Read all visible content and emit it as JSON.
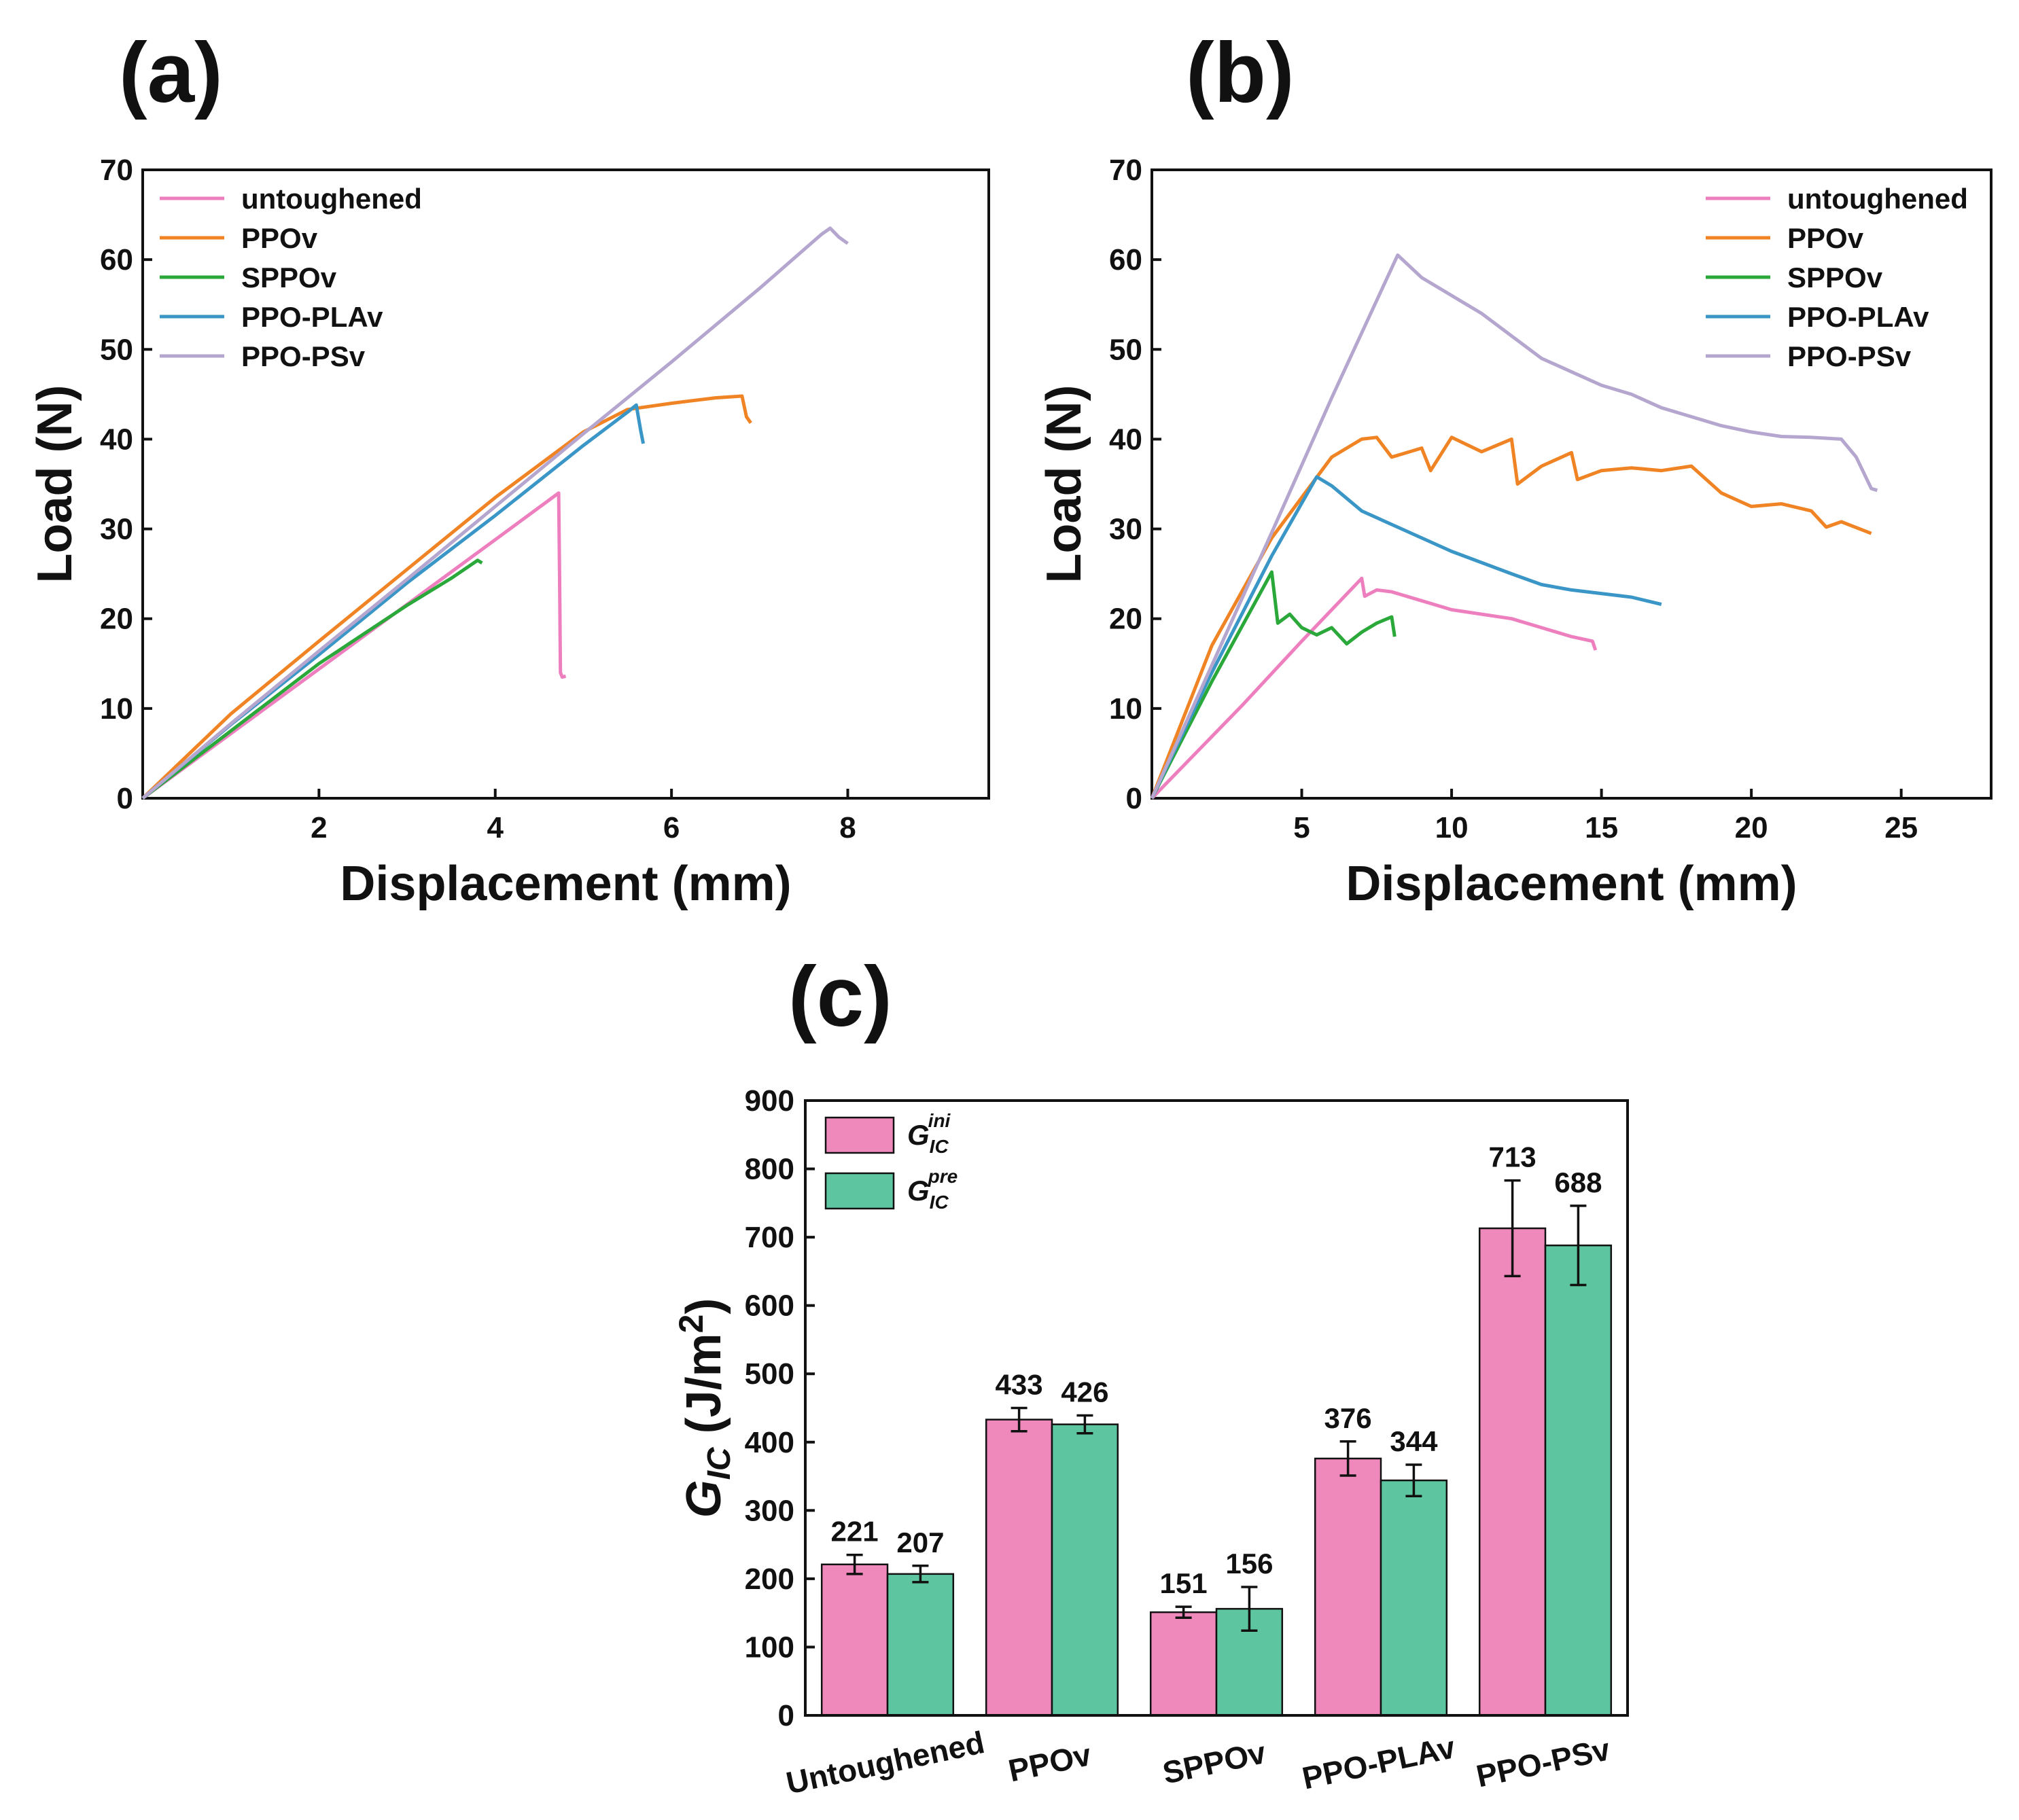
{
  "panels": [
    {
      "label": "(a)"
    },
    {
      "label": "(b)"
    },
    {
      "label": "(c)"
    }
  ],
  "chart_data": [
    {
      "type": "line",
      "panel": "(a)",
      "xlabel": "Displacement (mm)",
      "ylabel": "Load (N)",
      "xlim": [
        0,
        9.6
      ],
      "ylim": [
        0,
        70
      ],
      "xticks": [
        2,
        4,
        6,
        8
      ],
      "yticks": [
        0,
        10,
        20,
        30,
        40,
        50,
        60,
        70
      ],
      "legend_position": "top-left",
      "series": [
        {
          "name": "untoughened",
          "color": "#ee7fbf",
          "points": [
            [
              0,
              0
            ],
            [
              1,
              7.2
            ],
            [
              2,
              14.4
            ],
            [
              3,
              21.6
            ],
            [
              4,
              28.8
            ],
            [
              4.72,
              34
            ],
            [
              4.73,
              25
            ],
            [
              4.74,
              14
            ],
            [
              4.76,
              13.5
            ],
            [
              4.8,
              13.6
            ]
          ]
        },
        {
          "name": "PPOv",
          "color": "#f08424",
          "points": [
            [
              0,
              0
            ],
            [
              1,
              9.4
            ],
            [
              2,
              17.5
            ],
            [
              3,
              25.5
            ],
            [
              4,
              33.5
            ],
            [
              5,
              40.8
            ],
            [
              5.5,
              43.3
            ],
            [
              6,
              44
            ],
            [
              6.5,
              44.6
            ],
            [
              6.8,
              44.8
            ],
            [
              6.85,
              42.5
            ],
            [
              6.9,
              41.8
            ]
          ]
        },
        {
          "name": "SPPOv",
          "color": "#2aa83a",
          "points": [
            [
              0,
              0
            ],
            [
              1,
              7.5
            ],
            [
              2,
              15
            ],
            [
              3,
              21.5
            ],
            [
              3.5,
              24.5
            ],
            [
              3.8,
              26.5
            ],
            [
              3.85,
              26.2
            ]
          ]
        },
        {
          "name": "PPO-PLAv",
          "color": "#3a96c6",
          "points": [
            [
              0,
              0
            ],
            [
              1,
              8.2
            ],
            [
              2,
              16
            ],
            [
              3,
              24
            ],
            [
              4,
              31.5
            ],
            [
              5,
              39.3
            ],
            [
              5.5,
              43
            ],
            [
              5.6,
              43.8
            ],
            [
              5.65,
              41
            ],
            [
              5.68,
              39.5
            ]
          ]
        },
        {
          "name": "PPO-PSv",
          "color": "#b4a6ce",
          "points": [
            [
              0,
              0
            ],
            [
              1,
              8.3
            ],
            [
              2,
              16.4
            ],
            [
              3,
              24.4
            ],
            [
              4,
              32.5
            ],
            [
              5,
              40.6
            ],
            [
              6,
              48.6
            ],
            [
              7,
              56.8
            ],
            [
              7.7,
              62.8
            ],
            [
              7.8,
              63.5
            ],
            [
              7.9,
              62.5
            ],
            [
              8,
              61.8
            ]
          ]
        }
      ]
    },
    {
      "type": "line",
      "panel": "(b)",
      "xlabel": "Displacement (mm)",
      "ylabel": "Load (N)",
      "xlim": [
        0,
        28
      ],
      "ylim": [
        0,
        70
      ],
      "xticks": [
        5,
        10,
        15,
        20,
        25
      ],
      "yticks": [
        0,
        10,
        20,
        30,
        40,
        50,
        60,
        70
      ],
      "legend_position": "top-right",
      "series": [
        {
          "name": "untoughened",
          "color": "#ee7fbf",
          "points": [
            [
              0,
              0
            ],
            [
              3,
              10.3
            ],
            [
              5,
              17.5
            ],
            [
              7,
              24.5
            ],
            [
              7.1,
              22.5
            ],
            [
              7.5,
              23.2
            ],
            [
              8,
              23
            ],
            [
              9,
              22
            ],
            [
              10,
              21
            ],
            [
              12,
              20
            ],
            [
              13,
              19
            ],
            [
              14,
              18
            ],
            [
              14.7,
              17.5
            ],
            [
              14.8,
              16.5
            ]
          ]
        },
        {
          "name": "PPOv",
          "color": "#f08424",
          "points": [
            [
              0,
              0
            ],
            [
              2,
              17
            ],
            [
              4,
              29
            ],
            [
              6,
              38
            ],
            [
              7,
              40
            ],
            [
              7.5,
              40.2
            ],
            [
              8,
              38
            ],
            [
              9,
              39
            ],
            [
              9.3,
              36.5
            ],
            [
              10,
              40.2
            ],
            [
              11,
              38.6
            ],
            [
              12,
              40
            ],
            [
              12.2,
              35
            ],
            [
              13,
              37
            ],
            [
              14,
              38.5
            ],
            [
              14.2,
              35.5
            ],
            [
              15,
              36.5
            ],
            [
              16,
              36.8
            ],
            [
              17,
              36.5
            ],
            [
              18,
              37
            ],
            [
              19,
              34
            ],
            [
              20,
              32.5
            ],
            [
              21,
              32.8
            ],
            [
              22,
              32
            ],
            [
              22.5,
              30.2
            ],
            [
              23,
              30.8
            ],
            [
              24,
              29.5
            ]
          ]
        },
        {
          "name": "SPPOv",
          "color": "#2aa83a",
          "points": [
            [
              0,
              0
            ],
            [
              2,
              13
            ],
            [
              4,
              25.2
            ],
            [
              4.2,
              19.5
            ],
            [
              4.6,
              20.5
            ],
            [
              5,
              19
            ],
            [
              5.5,
              18.2
            ],
            [
              6,
              19
            ],
            [
              6.5,
              17.2
            ],
            [
              7,
              18.5
            ],
            [
              7.5,
              19.5
            ],
            [
              8,
              20.2
            ],
            [
              8.1,
              18
            ]
          ]
        },
        {
          "name": "PPO-PLAv",
          "color": "#3a96c6",
          "points": [
            [
              0,
              0
            ],
            [
              2,
              14
            ],
            [
              4,
              27
            ],
            [
              5.5,
              35.8
            ],
            [
              6,
              34.8
            ],
            [
              7,
              32
            ],
            [
              8,
              30.5
            ],
            [
              10,
              27.5
            ],
            [
              12,
              25
            ],
            [
              13,
              23.8
            ],
            [
              14,
              23.2
            ],
            [
              16,
              22.4
            ],
            [
              17,
              21.6
            ]
          ]
        },
        {
          "name": "PPO-PSv",
          "color": "#b4a6ce",
          "points": [
            [
              0,
              0
            ],
            [
              2,
              14.8
            ],
            [
              4,
              29.6
            ],
            [
              6,
              44.6
            ],
            [
              8.2,
              60.5
            ],
            [
              9,
              58
            ],
            [
              10,
              56
            ],
            [
              11,
              54
            ],
            [
              12,
              51.5
            ],
            [
              13,
              49
            ],
            [
              14,
              47.5
            ],
            [
              15,
              46
            ],
            [
              16,
              45
            ],
            [
              17,
              43.5
            ],
            [
              18,
              42.5
            ],
            [
              19,
              41.5
            ],
            [
              20,
              40.8
            ],
            [
              21,
              40.3
            ],
            [
              22,
              40.2
            ],
            [
              23,
              40
            ],
            [
              23.5,
              38
            ],
            [
              24,
              34.5
            ],
            [
              24.2,
              34.3
            ]
          ]
        }
      ]
    },
    {
      "type": "bar",
      "panel": "(c)",
      "ylabel": "G_IC (J/m²)",
      "ylabel_parts": {
        "symbol": "G",
        "subscript": "IC",
        "unit": "(J/m",
        "power": "2",
        "close": ")"
      },
      "ylim": [
        0,
        900
      ],
      "yticks": [
        0,
        100,
        200,
        300,
        400,
        500,
        600,
        700,
        800,
        900
      ],
      "categories": [
        "Untoughened",
        "PPOv",
        "SPPOv",
        "PPO-PLAv",
        "PPO-PSv"
      ],
      "legend_position": "top-left",
      "series": [
        {
          "name": "G_IC^ini",
          "symbol": "G",
          "subscript": "IC",
          "superscript": "ini",
          "color": "#ef88bb",
          "values": [
            221,
            433,
            151,
            376,
            713
          ],
          "errors": [
            14,
            17,
            8,
            25,
            70
          ],
          "labels": [
            "221",
            "433",
            "151",
            "376",
            "713"
          ]
        },
        {
          "name": "G_IC^pre",
          "symbol": "G",
          "subscript": "IC",
          "superscript": "pre",
          "color": "#5dc5a0",
          "values": [
            207,
            426,
            156,
            344,
            688
          ],
          "errors": [
            12,
            13,
            32,
            23,
            58
          ],
          "labels": [
            "207",
            "426",
            "156",
            "344",
            "688"
          ]
        }
      ]
    }
  ]
}
